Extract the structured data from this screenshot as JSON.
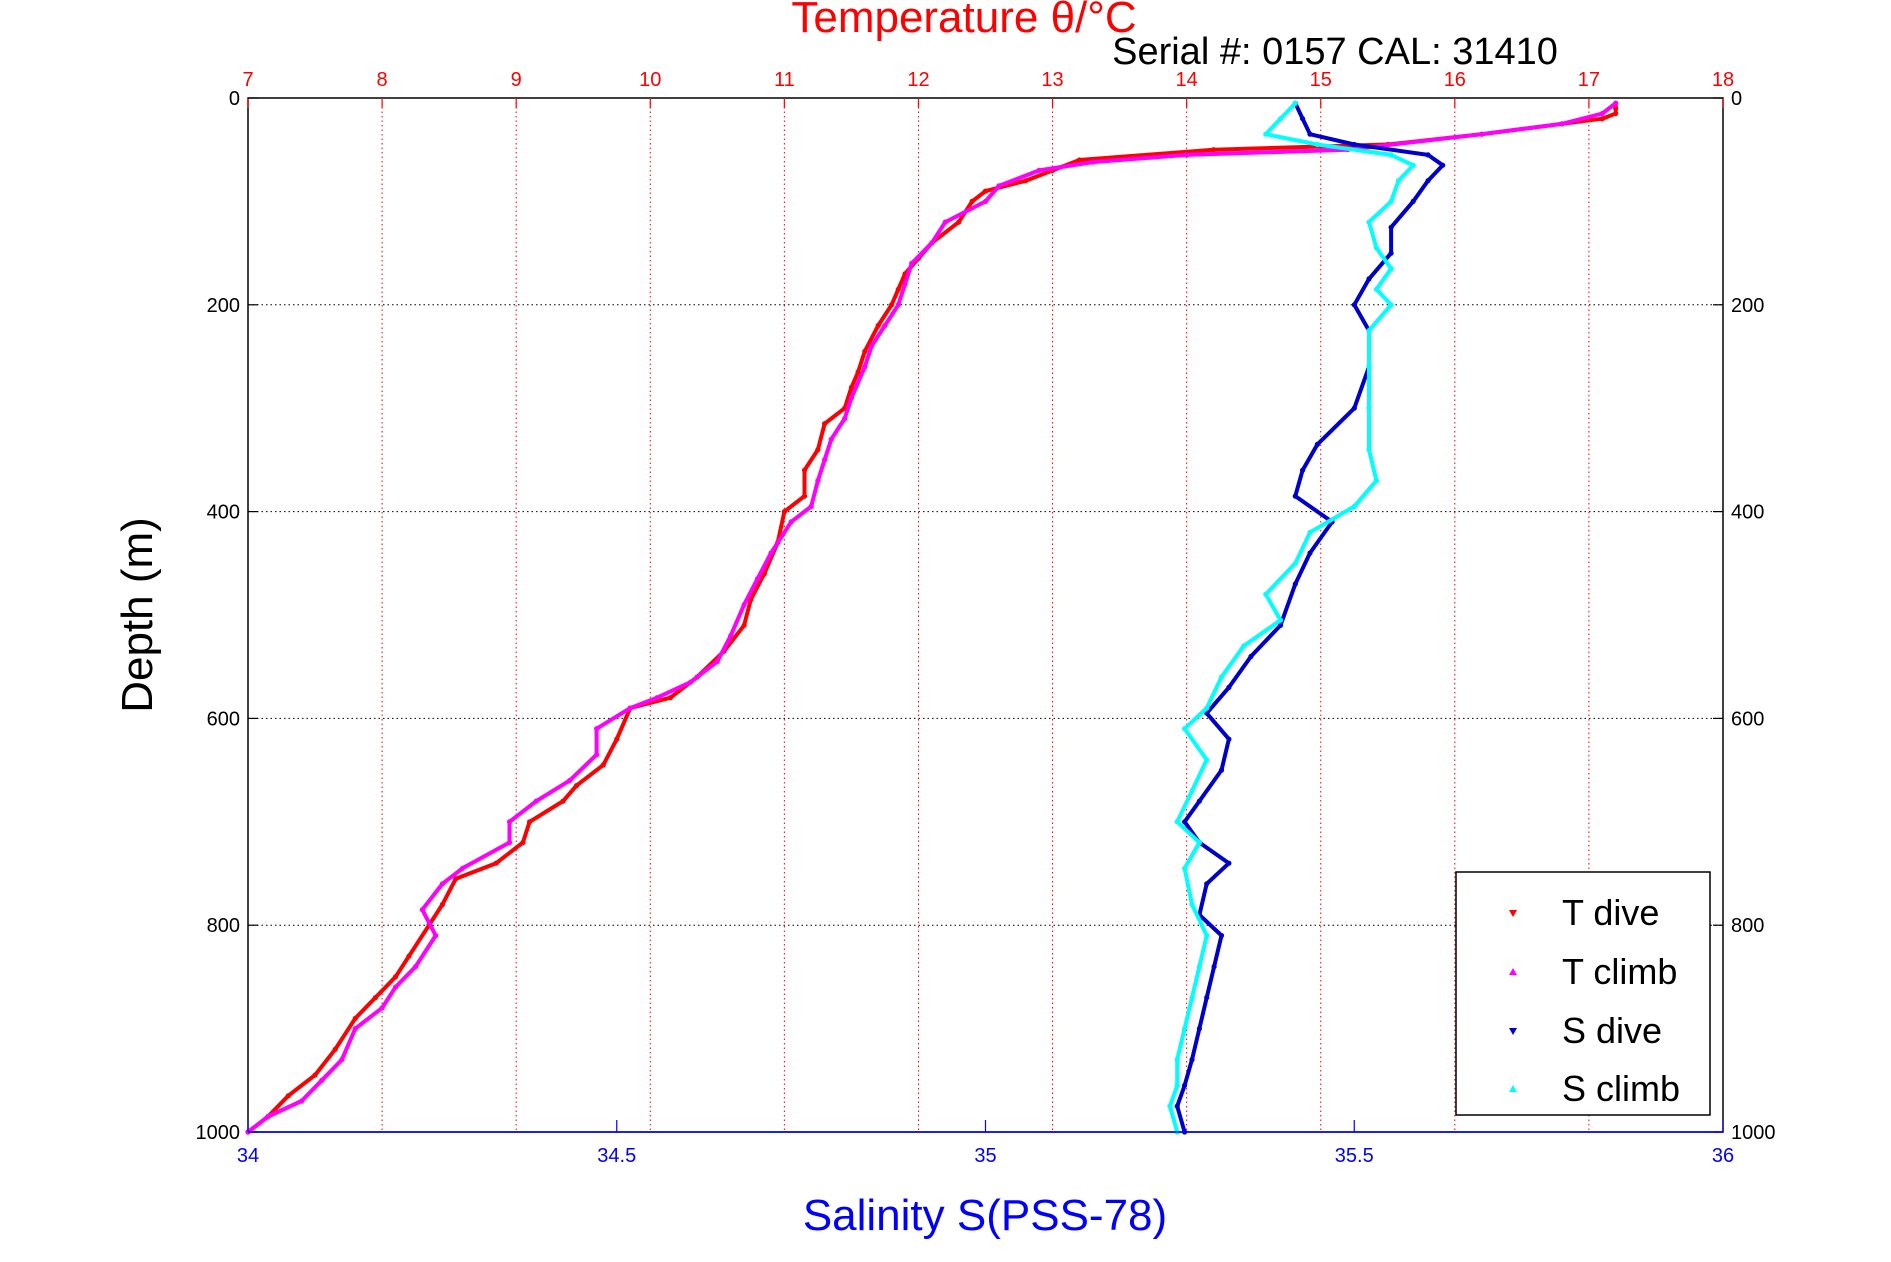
{
  "chart_data": {
    "type": "scatter",
    "title": "Temperature θ/°C",
    "subtitle": "Serial #: 0157  CAL: 31410",
    "xlabel": "Salinity S(PSS-78)",
    "ylabel": "Depth (m)",
    "colors": {
      "temp_axis": "#ff0000",
      "sal_axis": "#0000ff",
      "t_dive": "#ff0000",
      "t_climb": "#ff00ff",
      "s_dive": "#0000cc",
      "s_climb": "#00ffff"
    },
    "x_top": {
      "label": "Temperature θ/°C",
      "lim": [
        7,
        18
      ],
      "ticks": [
        "7",
        "8",
        "9",
        "10",
        "11",
        "12",
        "13",
        "14",
        "15",
        "16",
        "17",
        "18"
      ]
    },
    "x_bottom": {
      "label": "Salinity S(PSS-78)",
      "lim": [
        34,
        36
      ],
      "ticks": [
        "34",
        "34.5",
        "35",
        "35.5",
        "36"
      ]
    },
    "y": {
      "label": "Depth (m)",
      "lim": [
        0,
        1000
      ],
      "reversed": true,
      "ticks": [
        "0",
        "200",
        "400",
        "600",
        "800",
        "1000"
      ]
    },
    "grid": true,
    "legend_position": "bottom-right",
    "legend": [
      "T dive",
      "T climb",
      "S dive",
      "S climb"
    ],
    "series": [
      {
        "name": "T dive",
        "axis": "temperature",
        "marker": "triangle-down",
        "points": [
          [
            17.2,
            5
          ],
          [
            17.2,
            10
          ],
          [
            17.2,
            15
          ],
          [
            17.1,
            20
          ],
          [
            16.8,
            25
          ],
          [
            16.2,
            35
          ],
          [
            15.5,
            45
          ],
          [
            14.2,
            50
          ],
          [
            13.2,
            60
          ],
          [
            13.0,
            70
          ],
          [
            12.8,
            80
          ],
          [
            12.5,
            90
          ],
          [
            12.4,
            100
          ],
          [
            12.3,
            120
          ],
          [
            12.1,
            140
          ],
          [
            12.0,
            155
          ],
          [
            11.9,
            170
          ],
          [
            11.85,
            185
          ],
          [
            11.8,
            200
          ],
          [
            11.7,
            220
          ],
          [
            11.6,
            245
          ],
          [
            11.55,
            265
          ],
          [
            11.5,
            280
          ],
          [
            11.45,
            300
          ],
          [
            11.3,
            315
          ],
          [
            11.25,
            340
          ],
          [
            11.15,
            360
          ],
          [
            11.15,
            385
          ],
          [
            11.0,
            400
          ],
          [
            10.95,
            430
          ],
          [
            10.85,
            460
          ],
          [
            10.75,
            485
          ],
          [
            10.7,
            510
          ],
          [
            10.55,
            535
          ],
          [
            10.35,
            560
          ],
          [
            10.15,
            580
          ],
          [
            9.85,
            590
          ],
          [
            9.75,
            620
          ],
          [
            9.65,
            645
          ],
          [
            9.45,
            665
          ],
          [
            9.35,
            680
          ],
          [
            9.1,
            700
          ],
          [
            9.05,
            720
          ],
          [
            8.85,
            740
          ],
          [
            8.55,
            755
          ],
          [
            8.45,
            780
          ],
          [
            8.35,
            800
          ],
          [
            8.2,
            830
          ],
          [
            8.1,
            850
          ],
          [
            7.95,
            870
          ],
          [
            7.8,
            890
          ],
          [
            7.65,
            920
          ],
          [
            7.5,
            945
          ],
          [
            7.3,
            965
          ],
          [
            7.15,
            985
          ],
          [
            7.0,
            1000
          ]
        ]
      },
      {
        "name": "T climb",
        "axis": "temperature",
        "marker": "triangle-up",
        "points": [
          [
            17.2,
            5
          ],
          [
            17.1,
            15
          ],
          [
            16.8,
            25
          ],
          [
            16.2,
            35
          ],
          [
            15.2,
            50
          ],
          [
            14.0,
            55
          ],
          [
            13.3,
            62
          ],
          [
            12.9,
            70
          ],
          [
            12.6,
            85
          ],
          [
            12.5,
            100
          ],
          [
            12.2,
            120
          ],
          [
            12.1,
            140
          ],
          [
            11.95,
            160
          ],
          [
            11.9,
            180
          ],
          [
            11.85,
            200
          ],
          [
            11.75,
            220
          ],
          [
            11.65,
            240
          ],
          [
            11.6,
            260
          ],
          [
            11.5,
            290
          ],
          [
            11.45,
            310
          ],
          [
            11.35,
            330
          ],
          [
            11.3,
            350
          ],
          [
            11.25,
            370
          ],
          [
            11.2,
            395
          ],
          [
            11.05,
            410
          ],
          [
            10.9,
            440
          ],
          [
            10.8,
            465
          ],
          [
            10.7,
            490
          ],
          [
            10.6,
            520
          ],
          [
            10.5,
            545
          ],
          [
            10.3,
            565
          ],
          [
            10.05,
            580
          ],
          [
            9.85,
            590
          ],
          [
            9.6,
            610
          ],
          [
            9.6,
            635
          ],
          [
            9.4,
            660
          ],
          [
            9.15,
            680
          ],
          [
            8.95,
            700
          ],
          [
            8.95,
            720
          ],
          [
            8.6,
            745
          ],
          [
            8.45,
            760
          ],
          [
            8.3,
            785
          ],
          [
            8.4,
            810
          ],
          [
            8.25,
            840
          ],
          [
            8.1,
            860
          ],
          [
            8.0,
            880
          ],
          [
            7.8,
            900
          ],
          [
            7.7,
            930
          ],
          [
            7.55,
            950
          ],
          [
            7.4,
            970
          ],
          [
            7.15,
            985
          ],
          [
            7.0,
            1000
          ]
        ]
      },
      {
        "name": "S dive",
        "axis": "salinity",
        "marker": "triangle-down",
        "points": [
          [
            35.42,
            5
          ],
          [
            35.43,
            20
          ],
          [
            35.44,
            35
          ],
          [
            35.5,
            45
          ],
          [
            35.6,
            55
          ],
          [
            35.62,
            65
          ],
          [
            35.6,
            80
          ],
          [
            35.58,
            100
          ],
          [
            35.55,
            125
          ],
          [
            35.55,
            150
          ],
          [
            35.52,
            175
          ],
          [
            35.5,
            200
          ],
          [
            35.52,
            225
          ],
          [
            35.52,
            260
          ],
          [
            35.5,
            300
          ],
          [
            35.45,
            335
          ],
          [
            35.43,
            360
          ],
          [
            35.42,
            385
          ],
          [
            35.47,
            410
          ],
          [
            35.44,
            440
          ],
          [
            35.42,
            470
          ],
          [
            35.4,
            510
          ],
          [
            35.36,
            540
          ],
          [
            35.33,
            570
          ],
          [
            35.3,
            595
          ],
          [
            35.33,
            620
          ],
          [
            35.32,
            650
          ],
          [
            35.29,
            680
          ],
          [
            35.27,
            700
          ],
          [
            35.29,
            720
          ],
          [
            35.33,
            740
          ],
          [
            35.3,
            760
          ],
          [
            35.29,
            790
          ],
          [
            35.32,
            810
          ],
          [
            35.31,
            840
          ],
          [
            35.3,
            870
          ],
          [
            35.29,
            900
          ],
          [
            35.28,
            930
          ],
          [
            35.27,
            955
          ],
          [
            35.26,
            975
          ],
          [
            35.27,
            1000
          ]
        ]
      },
      {
        "name": "S climb",
        "axis": "salinity",
        "marker": "triangle-up",
        "points": [
          [
            35.42,
            5
          ],
          [
            35.4,
            20
          ],
          [
            35.38,
            35
          ],
          [
            35.45,
            45
          ],
          [
            35.55,
            55
          ],
          [
            35.58,
            65
          ],
          [
            35.56,
            80
          ],
          [
            35.55,
            100
          ],
          [
            35.52,
            120
          ],
          [
            35.53,
            145
          ],
          [
            35.55,
            165
          ],
          [
            35.53,
            185
          ],
          [
            35.55,
            200
          ],
          [
            35.52,
            225
          ],
          [
            35.52,
            260
          ],
          [
            35.52,
            300
          ],
          [
            35.52,
            340
          ],
          [
            35.53,
            370
          ],
          [
            35.5,
            395
          ],
          [
            35.44,
            420
          ],
          [
            35.42,
            450
          ],
          [
            35.38,
            480
          ],
          [
            35.4,
            505
          ],
          [
            35.35,
            530
          ],
          [
            35.32,
            560
          ],
          [
            35.3,
            590
          ],
          [
            35.27,
            610
          ],
          [
            35.3,
            640
          ],
          [
            35.28,
            670
          ],
          [
            35.26,
            700
          ],
          [
            35.29,
            720
          ],
          [
            35.27,
            745
          ],
          [
            35.28,
            780
          ],
          [
            35.3,
            810
          ],
          [
            35.29,
            840
          ],
          [
            35.28,
            870
          ],
          [
            35.27,
            900
          ],
          [
            35.26,
            930
          ],
          [
            35.26,
            955
          ],
          [
            35.25,
            975
          ],
          [
            35.26,
            1000
          ]
        ]
      }
    ]
  }
}
